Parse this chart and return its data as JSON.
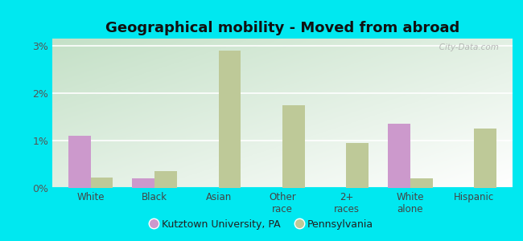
{
  "title": "Geographical mobility - Moved from abroad",
  "categories": [
    "White",
    "Black",
    "Asian",
    "Other\nrace",
    "2+\nraces",
    "White\nalone",
    "Hispanic"
  ],
  "kutztown_values": [
    1.1,
    0.2,
    0.0,
    0.0,
    0.0,
    1.35,
    0.0
  ],
  "pennsylvania_values": [
    0.22,
    0.35,
    2.9,
    1.75,
    0.95,
    0.2,
    1.25
  ],
  "kutztown_color": "#cc99cc",
  "pennsylvania_color": "#bec998",
  "ylim": [
    0,
    3.15
  ],
  "yticks": [
    0,
    1,
    2,
    3
  ],
  "ytick_labels": [
    "0%",
    "1%",
    "2%",
    "3%"
  ],
  "bar_width": 0.35,
  "background_color_outer": "#00e8f0",
  "watermark": "   City-Data.com",
  "legend_kutztown": "Kutztown University, PA",
  "legend_pennsylvania": "Pennsylvania",
  "title_fontsize": 13,
  "gradient_colors": [
    "#b5d9c0",
    "#f0f8f0",
    "#ffffff"
  ],
  "grid_color": "#ccddcc"
}
